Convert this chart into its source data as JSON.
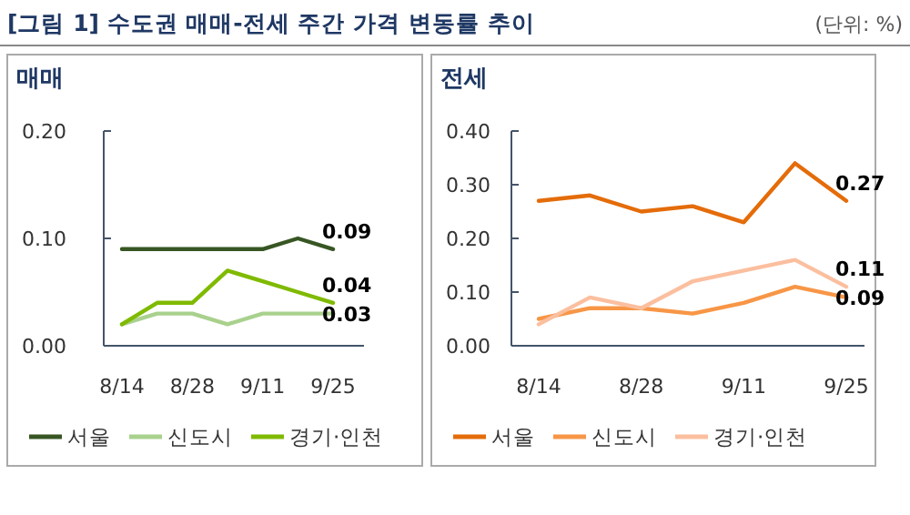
{
  "chart_data": [
    {
      "type": "line",
      "title": "매매",
      "annotations": [
        "[그림 1] 수도권 매매-전세 주간 가격 변동률 추이",
        "(단위: %)"
      ],
      "categories": [
        "8/14",
        null,
        "8/28",
        null,
        "9/11",
        null,
        "9/25"
      ],
      "series": [
        {
          "name": "서울",
          "color": "#375623",
          "values": [
            0.09,
            0.09,
            0.09,
            0.09,
            0.09,
            0.1,
            0.09
          ],
          "value_labels": [
            null,
            null,
            null,
            null,
            null,
            null,
            "0.09"
          ]
        },
        {
          "name": "신도시",
          "color": "#a9d18e",
          "values": [
            0.02,
            0.03,
            0.03,
            0.02,
            0.03,
            0.03,
            0.03
          ],
          "value_labels": [
            null,
            null,
            null,
            null,
            null,
            null,
            "0.03"
          ]
        },
        {
          "name": "경기·인천",
          "color": "#7fba00",
          "values": [
            0.02,
            0.04,
            0.04,
            0.07,
            0.06,
            0.05,
            0.04
          ],
          "value_labels": [
            null,
            null,
            null,
            null,
            null,
            null,
            "0.04"
          ]
        }
      ],
      "ylim": [
        0,
        0.2
      ],
      "yticks": [
        {
          "value": 0,
          "label": "0.00"
        },
        {
          "value": 0.1,
          "label": "0.10"
        },
        {
          "value": 0.2,
          "label": "0.20"
        }
      ],
      "grid": false,
      "legend": "bottom",
      "line_style": "solid",
      "marker": "none"
    },
    {
      "type": "line",
      "title": "전세",
      "categories": [
        "8/14",
        null,
        "8/28",
        null,
        "9/11",
        null,
        "9/25"
      ],
      "series": [
        {
          "name": "서울",
          "color": "#e46c0a",
          "values": [
            0.27,
            0.28,
            0.25,
            0.26,
            0.23,
            0.34,
            0.27
          ],
          "value_labels": [
            null,
            null,
            null,
            null,
            null,
            null,
            "0.27"
          ]
        },
        {
          "name": "신도시",
          "color": "#f79646",
          "values": [
            0.05,
            0.07,
            0.07,
            0.06,
            0.08,
            0.11,
            0.09
          ],
          "value_labels": [
            null,
            null,
            null,
            null,
            null,
            null,
            "0.09"
          ]
        },
        {
          "name": "경기·인천",
          "color": "#fbbf9f",
          "values": [
            0.04,
            0.09,
            0.07,
            0.12,
            0.14,
            0.16,
            0.11
          ],
          "value_labels": [
            null,
            null,
            null,
            null,
            null,
            null,
            "0.11"
          ]
        }
      ],
      "ylim": [
        0,
        0.4
      ],
      "yticks": [
        {
          "value": 0,
          "label": "0.00"
        },
        {
          "value": 0.1,
          "label": "0.10"
        },
        {
          "value": 0.2,
          "label": "0.20"
        },
        {
          "value": 0.3,
          "label": "0.30"
        },
        {
          "value": 0.4,
          "label": "0.40"
        }
      ],
      "grid": false,
      "legend": "bottom",
      "line_style": "solid",
      "marker": "none"
    }
  ]
}
